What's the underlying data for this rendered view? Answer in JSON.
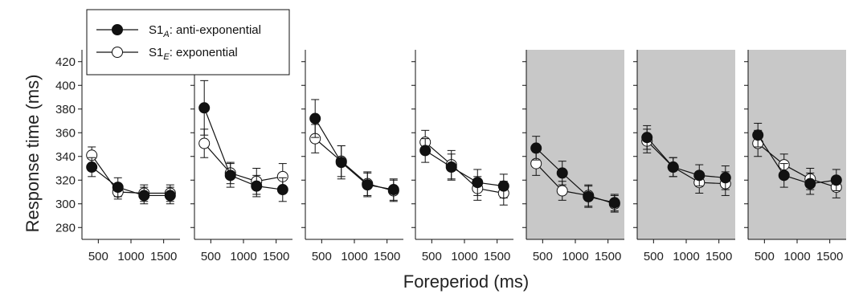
{
  "chart_data": {
    "type": "line",
    "xlabel": "Foreperiod (ms)",
    "ylabel": "Response time (ms)",
    "xlim": [
      250,
      1750
    ],
    "ylim": [
      270,
      430
    ],
    "x_ticks": [
      500,
      1000,
      1500
    ],
    "y_ticks": [
      280,
      300,
      320,
      340,
      360,
      380,
      400,
      420
    ],
    "legend": {
      "placement": "top-left",
      "entries": [
        {
          "id": "A",
          "prefix": "S1",
          "subscript": "A",
          "suffix": ": anti-exponential",
          "marker": "filled",
          "color": "#111111"
        },
        {
          "id": "E",
          "prefix": "S1",
          "subscript": "E",
          "suffix": ": exponential",
          "marker": "open",
          "color": "#111111"
        }
      ]
    },
    "panels": [
      {
        "shaded": false,
        "series": [
          {
            "id": "A",
            "x": [
              400,
              800,
              1200,
              1600
            ],
            "y": [
              331,
              314,
              307,
              307
            ],
            "err": [
              8,
              8,
              7,
              7
            ]
          },
          {
            "id": "E",
            "x": [
              400,
              800,
              1200,
              1600
            ],
            "y": [
              341,
              310,
              309,
              309
            ],
            "err": [
              7,
              6,
              7,
              7
            ]
          }
        ]
      },
      {
        "shaded": false,
        "series": [
          {
            "id": "A",
            "x": [
              400,
              800,
              1200,
              1600
            ],
            "y": [
              381,
              324,
              315,
              312
            ],
            "err": [
              23,
              10,
              9,
              10
            ]
          },
          {
            "id": "E",
            "x": [
              400,
              800,
              1200,
              1600
            ],
            "y": [
              351,
              326,
              319,
              323
            ],
            "err": [
              12,
              9,
              11,
              11
            ]
          }
        ]
      },
      {
        "shaded": false,
        "series": [
          {
            "id": "A",
            "x": [
              400,
              800,
              1200,
              1600
            ],
            "y": [
              372,
              335,
              316,
              312
            ],
            "err": [
              16,
              14,
              10,
              9
            ]
          },
          {
            "id": "E",
            "x": [
              400,
              800,
              1200,
              1600
            ],
            "y": [
              355,
              336,
              317,
              311
            ],
            "err": [
              12,
              13,
              10,
              9
            ]
          }
        ]
      },
      {
        "shaded": false,
        "series": [
          {
            "id": "A",
            "x": [
              400,
              800,
              1200,
              1600
            ],
            "y": [
              345,
              331,
              318,
              315
            ],
            "err": [
              10,
              11,
              11,
              10
            ]
          },
          {
            "id": "E",
            "x": [
              400,
              800,
              1200,
              1600
            ],
            "y": [
              352,
              333,
              313,
              309
            ],
            "err": [
              10,
              12,
              10,
              10
            ]
          }
        ]
      },
      {
        "shaded": true,
        "series": [
          {
            "id": "A",
            "x": [
              400,
              800,
              1200,
              1600
            ],
            "y": [
              347,
              326,
              306,
              301
            ],
            "err": [
              10,
              10,
              9,
              7
            ]
          },
          {
            "id": "E",
            "x": [
              400,
              800,
              1200,
              1600
            ],
            "y": [
              334,
              311,
              307,
              300
            ],
            "err": [
              10,
              8,
              9,
              7
            ]
          }
        ]
      },
      {
        "shaded": true,
        "series": [
          {
            "id": "A",
            "x": [
              400,
              800,
              1200,
              1600
            ],
            "y": [
              356,
              331,
              324,
              322
            ],
            "err": [
              10,
              8,
              9,
              10
            ]
          },
          {
            "id": "E",
            "x": [
              400,
              800,
              1200,
              1600
            ],
            "y": [
              353,
              331,
              318,
              317
            ],
            "err": [
              10,
              8,
              9,
              10
            ]
          }
        ]
      },
      {
        "shaded": true,
        "series": [
          {
            "id": "A",
            "x": [
              400,
              800,
              1200,
              1600
            ],
            "y": [
              358,
              324,
              317,
              320
            ],
            "err": [
              10,
              10,
              9,
              9
            ]
          },
          {
            "id": "E",
            "x": [
              400,
              800,
              1200,
              1600
            ],
            "y": [
              351,
              333,
              321,
              314
            ],
            "err": [
              11,
              9,
              9,
              9
            ]
          }
        ]
      }
    ]
  }
}
